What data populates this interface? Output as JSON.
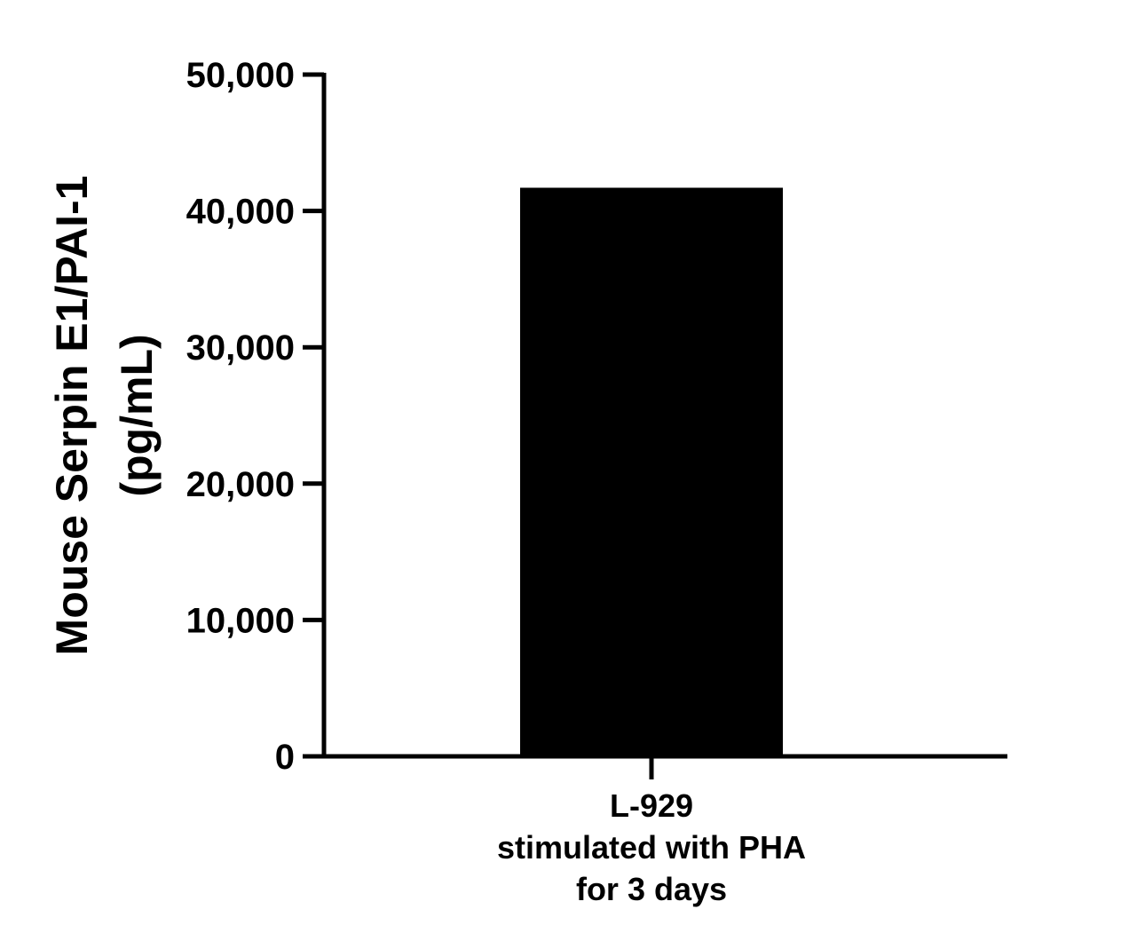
{
  "chart_data": {
    "type": "bar",
    "title": "",
    "xlabel": "",
    "ylabel_lines": [
      "Mouse Serpin E1/PAI-1",
      "(pg/mL)"
    ],
    "categories": [
      {
        "lines": [
          "L-929",
          "stimulated with PHA",
          "for 3 days"
        ]
      }
    ],
    "values": [
      41700
    ],
    "ylim": [
      0,
      50000
    ],
    "yticks": [
      0,
      10000,
      20000,
      30000,
      40000,
      50000
    ],
    "ytick_labels": [
      "0",
      "10,000",
      "20,000",
      "30,000",
      "40,000",
      "50,000"
    ],
    "grid": false,
    "legend": "none",
    "bar_color": "#000000",
    "axis_color": "#000000"
  }
}
